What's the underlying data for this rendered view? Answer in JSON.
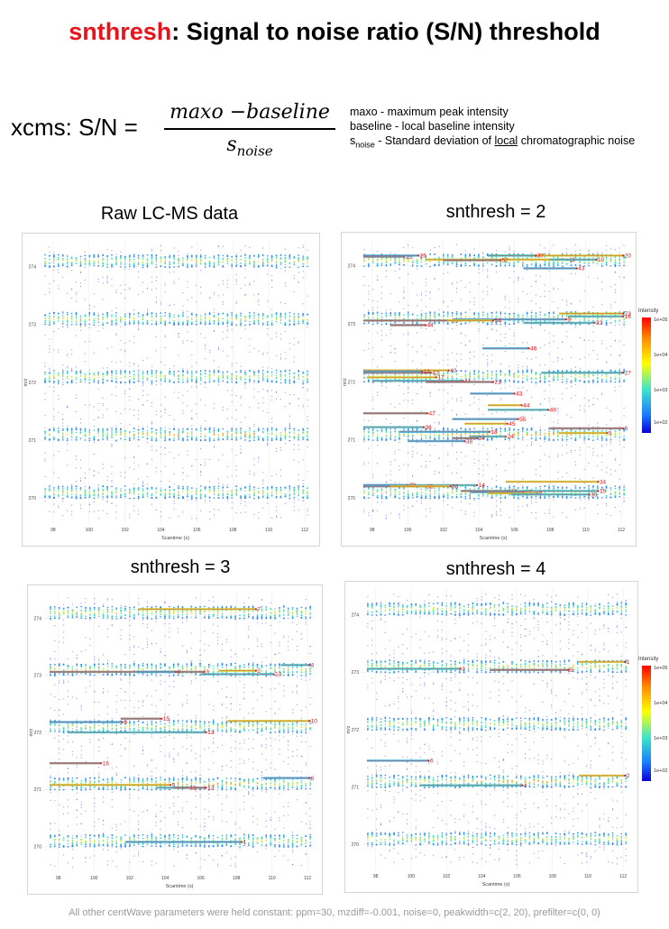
{
  "header": {
    "title_highlight": "snthresh",
    "title_rest": ": Signal to noise ratio (S/N) threshold"
  },
  "formula": {
    "lhs": "xcms: S/N =",
    "numerator": "maxo −baseline",
    "denominator_base": "s",
    "denominator_sub": "noise"
  },
  "definitions": {
    "line1": "maxo - maximum peak intensity",
    "line2": "baseline - local baseline intensity",
    "line3_base": "s",
    "line3_sub": "noise",
    "line3_mid": " - Standard deviation of ",
    "line3_underlined": "local",
    "line3_end": " chromatographic noise"
  },
  "footer": "All other centWave parameters were held constant: ppm=30, mzdiff=-0.001, noise=0, peakwidth=c(2, 20), prefilter=c(0, 0)",
  "legend": {
    "title": "Intensity",
    "ticks": [
      "1e+05",
      "1e+04",
      "1e+03",
      "1e+02"
    ],
    "colors": [
      "#0a00d8",
      "#1a7cff",
      "#3fe6c7",
      "#ffff00",
      "#ff8a00",
      "#ff0000"
    ]
  },
  "chart_data": [
    {
      "type": "scatter",
      "title": "Raw LC-MS data",
      "xlabel": "Scantime (s)",
      "ylabel": "m/z",
      "xlim": [
        97.2,
        112.4
      ],
      "ylim": [
        269.55,
        274.45
      ],
      "xticks": [
        98,
        100,
        102,
        104,
        106,
        108,
        110,
        112
      ],
      "xtick_labels": [
        "98",
        "100",
        "102",
        "104",
        "106",
        "108",
        "110",
        "112"
      ],
      "yticks": [
        270,
        271,
        272,
        273,
        274
      ],
      "ytick_labels": [
        "270",
        "271",
        "272",
        "273",
        "274"
      ],
      "intense_mz_bands": [
        270.1,
        271.1,
        272.1,
        273.1,
        274.1
      ],
      "peaks": []
    },
    {
      "type": "scatter",
      "title": "snthresh = 2",
      "xlabel": "Scantime (s)",
      "ylabel": "m/z",
      "xlim": [
        97.2,
        112.4
      ],
      "ylim": [
        269.55,
        274.45
      ],
      "xticks": [
        98,
        100,
        102,
        104,
        106,
        108,
        110,
        112
      ],
      "xtick_labels": [
        "98",
        "100",
        "102",
        "104",
        "106",
        "108",
        "110",
        "112"
      ],
      "yticks": [
        270,
        271,
        272,
        273,
        274
      ],
      "ytick_labels": [
        "270",
        "271",
        "272",
        "273",
        "274"
      ],
      "intense_mz_bands": [
        270.1,
        271.1,
        272.1,
        273.1,
        274.1
      ],
      "legend": "right",
      "peaks": [
        {
          "label": "20",
          "x1": 104.5,
          "x2": 112.1,
          "mz": 274.18
        },
        {
          "label": "37",
          "x1": 104.5,
          "x2": 107.2,
          "mz": 274.18
        },
        {
          "label": "23",
          "x1": 97.5,
          "x2": 99.8,
          "mz": 274.16
        },
        {
          "label": "26",
          "x1": 97.5,
          "x2": 100.6,
          "mz": 274.18
        },
        {
          "label": "11",
          "x1": 101.0,
          "x2": 109.0,
          "mz": 274.11
        },
        {
          "label": "10",
          "x1": 108.0,
          "x2": 110.6,
          "mz": 274.11
        },
        {
          "label": "52",
          "x1": 102.0,
          "x2": 105.2,
          "mz": 274.1
        },
        {
          "label": "43",
          "x1": 106.5,
          "x2": 109.5,
          "mz": 273.96
        },
        {
          "label": "73",
          "x1": 108.5,
          "x2": 112.1,
          "mz": 273.18
        },
        {
          "label": "16",
          "x1": 109.0,
          "x2": 112.1,
          "mz": 273.13
        },
        {
          "label": "15",
          "x1": 97.5,
          "x2": 102.4,
          "mz": 273.06
        },
        {
          "label": "9",
          "x1": 102.6,
          "x2": 108.9,
          "mz": 273.08
        },
        {
          "label": "54",
          "x1": 102.2,
          "x2": 104.8,
          "mz": 273.06
        },
        {
          "label": "33",
          "x1": 106.5,
          "x2": 110.5,
          "mz": 273.02
        },
        {
          "label": "44",
          "x1": 99.0,
          "x2": 101.0,
          "mz": 272.98
        },
        {
          "label": "46",
          "x1": 104.2,
          "x2": 106.8,
          "mz": 272.58
        },
        {
          "label": "40",
          "x1": 97.5,
          "x2": 102.3,
          "mz": 272.2
        },
        {
          "label": "27",
          "x1": 107.5,
          "x2": 112.1,
          "mz": 272.16
        },
        {
          "label": "42",
          "x1": 97.5,
          "x2": 101.3,
          "mz": 272.16
        },
        {
          "label": "13",
          "x1": 97.5,
          "x2": 100.8,
          "mz": 272.18
        },
        {
          "label": "17",
          "x1": 97.7,
          "x2": 101.6,
          "mz": 272.08
        },
        {
          "label": "41",
          "x1": 98.0,
          "x2": 103.1,
          "mz": 272.02
        },
        {
          "label": "21",
          "x1": 101.0,
          "x2": 104.8,
          "mz": 272.0
        },
        {
          "label": "43",
          "x1": 103.5,
          "x2": 106.0,
          "mz": 271.8
        },
        {
          "label": "44",
          "x1": 104.5,
          "x2": 106.4,
          "mz": 271.6
        },
        {
          "label": "49",
          "x1": 104.5,
          "x2": 107.9,
          "mz": 271.52
        },
        {
          "label": "47",
          "x1": 97.5,
          "x2": 101.1,
          "mz": 271.46
        },
        {
          "label": "55",
          "x1": 102.5,
          "x2": 106.2,
          "mz": 271.36
        },
        {
          "label": "45",
          "x1": 103.2,
          "x2": 105.6,
          "mz": 271.28
        },
        {
          "label": "36",
          "x1": 97.5,
          "x2": 100.9,
          "mz": 271.22
        },
        {
          "label": "6",
          "x1": 108.0,
          "x2": 112.1,
          "mz": 271.2
        },
        {
          "label": "18",
          "x1": 99.5,
          "x2": 104.6,
          "mz": 271.14
        },
        {
          "label": "5",
          "x1": 108.5,
          "x2": 111.2,
          "mz": 271.12
        },
        {
          "label": "24",
          "x1": 103.5,
          "x2": 105.5,
          "mz": 271.06
        },
        {
          "label": "34",
          "x1": 102.5,
          "x2": 103.9,
          "mz": 271.03
        },
        {
          "label": "38",
          "x1": 100.0,
          "x2": 103.2,
          "mz": 270.98
        },
        {
          "label": "34",
          "x1": 105.5,
          "x2": 110.7,
          "mz": 270.28
        },
        {
          "label": "14",
          "x1": 97.5,
          "x2": 103.9,
          "mz": 270.22
        },
        {
          "label": "35",
          "x1": 97.5,
          "x2": 101.0,
          "mz": 270.2
        },
        {
          "label": "22",
          "x1": 97.5,
          "x2": 100.0,
          "mz": 270.22
        },
        {
          "label": "36",
          "x1": 99.0,
          "x2": 102.4,
          "mz": 270.2
        },
        {
          "label": "19",
          "x1": 105.5,
          "x2": 110.7,
          "mz": 270.12
        },
        {
          "label": "14",
          "x1": 103.0,
          "x2": 105.7,
          "mz": 270.12
        },
        {
          "label": "12",
          "x1": 103.5,
          "x2": 106.5,
          "mz": 270.1
        },
        {
          "label": "8",
          "x1": 104.5,
          "x2": 107.3,
          "mz": 270.08
        },
        {
          "label": "39",
          "x1": 105.8,
          "x2": 110.2,
          "mz": 270.06
        }
      ]
    },
    {
      "type": "scatter",
      "title": "snthresh = 3",
      "xlabel": "Scantime (s)",
      "ylabel": "m/z",
      "xlim": [
        97.2,
        112.4
      ],
      "ylim": [
        269.55,
        274.45
      ],
      "xticks": [
        98,
        100,
        102,
        104,
        106,
        108,
        110,
        112
      ],
      "xtick_labels": [
        "98",
        "100",
        "102",
        "104",
        "106",
        "108",
        "110",
        "112"
      ],
      "yticks": [
        270,
        271,
        272,
        273,
        274
      ],
      "ytick_labels": [
        "270",
        "271",
        "272",
        "273",
        "274"
      ],
      "intense_mz_bands": [
        270.1,
        271.1,
        272.1,
        273.1,
        274.1
      ],
      "peaks": [
        {
          "label": "7",
          "x1": 102.5,
          "x2": 109.1,
          "mz": 274.16
        },
        {
          "label": "4",
          "x1": 110.5,
          "x2": 112.1,
          "mz": 273.18
        },
        {
          "label": "3",
          "x1": 97.5,
          "x2": 106.2,
          "mz": 273.06
        },
        {
          "label": "8",
          "x1": 102.4,
          "x2": 104.6,
          "mz": 273.06
        },
        {
          "label": "2",
          "x1": 107.0,
          "x2": 109.1,
          "mz": 273.08
        },
        {
          "label": "14",
          "x1": 106.0,
          "x2": 110.1,
          "mz": 273.02
        },
        {
          "label": "15",
          "x1": 101.5,
          "x2": 103.8,
          "mz": 272.24
        },
        {
          "label": "9",
          "x1": 97.5,
          "x2": 101.6,
          "mz": 272.18
        },
        {
          "label": "10",
          "x1": 107.5,
          "x2": 112.1,
          "mz": 272.2
        },
        {
          "label": "13",
          "x1": 98.5,
          "x2": 106.3,
          "mz": 272.0
        },
        {
          "label": "16",
          "x1": 97.5,
          "x2": 100.4,
          "mz": 271.46
        },
        {
          "label": "6",
          "x1": 109.5,
          "x2": 112.1,
          "mz": 271.2
        },
        {
          "label": "5",
          "x1": 97.5,
          "x2": 104.3,
          "mz": 271.08
        },
        {
          "label": "12",
          "x1": 103.5,
          "x2": 105.3,
          "mz": 271.03
        },
        {
          "label": "12",
          "x1": 104.5,
          "x2": 106.3,
          "mz": 271.03
        },
        {
          "label": "1",
          "x1": 101.8,
          "x2": 108.3,
          "mz": 270.08
        }
      ]
    },
    {
      "type": "scatter",
      "title": "snthresh = 4",
      "xlabel": "Scantime (s)",
      "ylabel": "m/z",
      "xlim": [
        97.2,
        112.4
      ],
      "ylim": [
        269.55,
        274.45
      ],
      "xticks": [
        98,
        100,
        102,
        104,
        106,
        108,
        110,
        112
      ],
      "xtick_labels": [
        "98",
        "100",
        "102",
        "104",
        "106",
        "108",
        "110",
        "112"
      ],
      "yticks": [
        270,
        271,
        272,
        273,
        274
      ],
      "ytick_labels": [
        "270",
        "271",
        "272",
        "273",
        "274"
      ],
      "intense_mz_bands": [
        270.1,
        271.1,
        272.1,
        273.1,
        274.1
      ],
      "legend": "right",
      "peaks": [
        {
          "label": "1",
          "x1": 109.5,
          "x2": 112.1,
          "mz": 273.18
        },
        {
          "label": "3",
          "x1": 97.5,
          "x2": 102.8,
          "mz": 273.06
        },
        {
          "label": "5",
          "x1": 104.5,
          "x2": 108.9,
          "mz": 273.04
        },
        {
          "label": "6",
          "x1": 97.5,
          "x2": 101.0,
          "mz": 271.46
        },
        {
          "label": "2",
          "x1": 109.5,
          "x2": 112.1,
          "mz": 271.2
        },
        {
          "label": "4",
          "x1": 100.5,
          "x2": 106.3,
          "mz": 271.03
        }
      ]
    }
  ]
}
